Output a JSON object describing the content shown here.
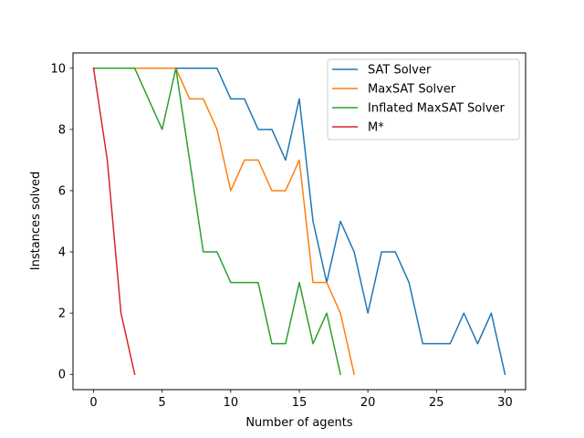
{
  "chart_data": {
    "type": "line",
    "title": "",
    "xlabel": "Number of agents",
    "ylabel": "Instances solved",
    "xlim": [
      -1.5,
      31.5
    ],
    "ylim": [
      -0.5,
      10.5
    ],
    "xticks": [
      0,
      5,
      10,
      15,
      20,
      25,
      30
    ],
    "yticks": [
      0,
      2,
      4,
      6,
      8,
      10
    ],
    "grid": false,
    "legend_position": "top-right",
    "series": [
      {
        "name": "SAT Solver",
        "color": "#1f77b4",
        "x": [
          0,
          1,
          2,
          3,
          4,
          5,
          6,
          7,
          8,
          9,
          10,
          11,
          12,
          13,
          14,
          15,
          16,
          17,
          18,
          19,
          20,
          21,
          22,
          23,
          24,
          25,
          26,
          27,
          28,
          29,
          30
        ],
        "y": [
          10,
          10,
          10,
          10,
          10,
          10,
          10,
          10,
          10,
          10,
          9,
          9,
          8,
          8,
          7,
          9,
          5,
          3,
          5,
          4,
          2,
          4,
          4,
          3,
          1,
          1,
          1,
          2,
          1,
          2,
          0
        ]
      },
      {
        "name": "MaxSAT Solver",
        "color": "#ff7f0e",
        "x": [
          0,
          1,
          2,
          3,
          4,
          5,
          6,
          7,
          8,
          9,
          10,
          11,
          12,
          13,
          14,
          15,
          16,
          17,
          18,
          19
        ],
        "y": [
          10,
          10,
          10,
          10,
          10,
          10,
          10,
          9,
          9,
          8,
          6,
          7,
          7,
          6,
          6,
          7,
          3,
          3,
          2,
          0
        ]
      },
      {
        "name": "Inflated MaxSAT Solver",
        "color": "#2ca02c",
        "x": [
          0,
          1,
          2,
          3,
          4,
          5,
          6,
          7,
          8,
          9,
          10,
          11,
          12,
          13,
          14,
          15,
          16,
          17,
          18
        ],
        "y": [
          10,
          10,
          10,
          10,
          9,
          8,
          10,
          7,
          4,
          4,
          3,
          3,
          3,
          1,
          1,
          3,
          1,
          2,
          0
        ]
      },
      {
        "name": "M*",
        "color": "#d62728",
        "x": [
          0,
          1,
          2,
          3
        ],
        "y": [
          10,
          7,
          2,
          0
        ]
      }
    ]
  }
}
